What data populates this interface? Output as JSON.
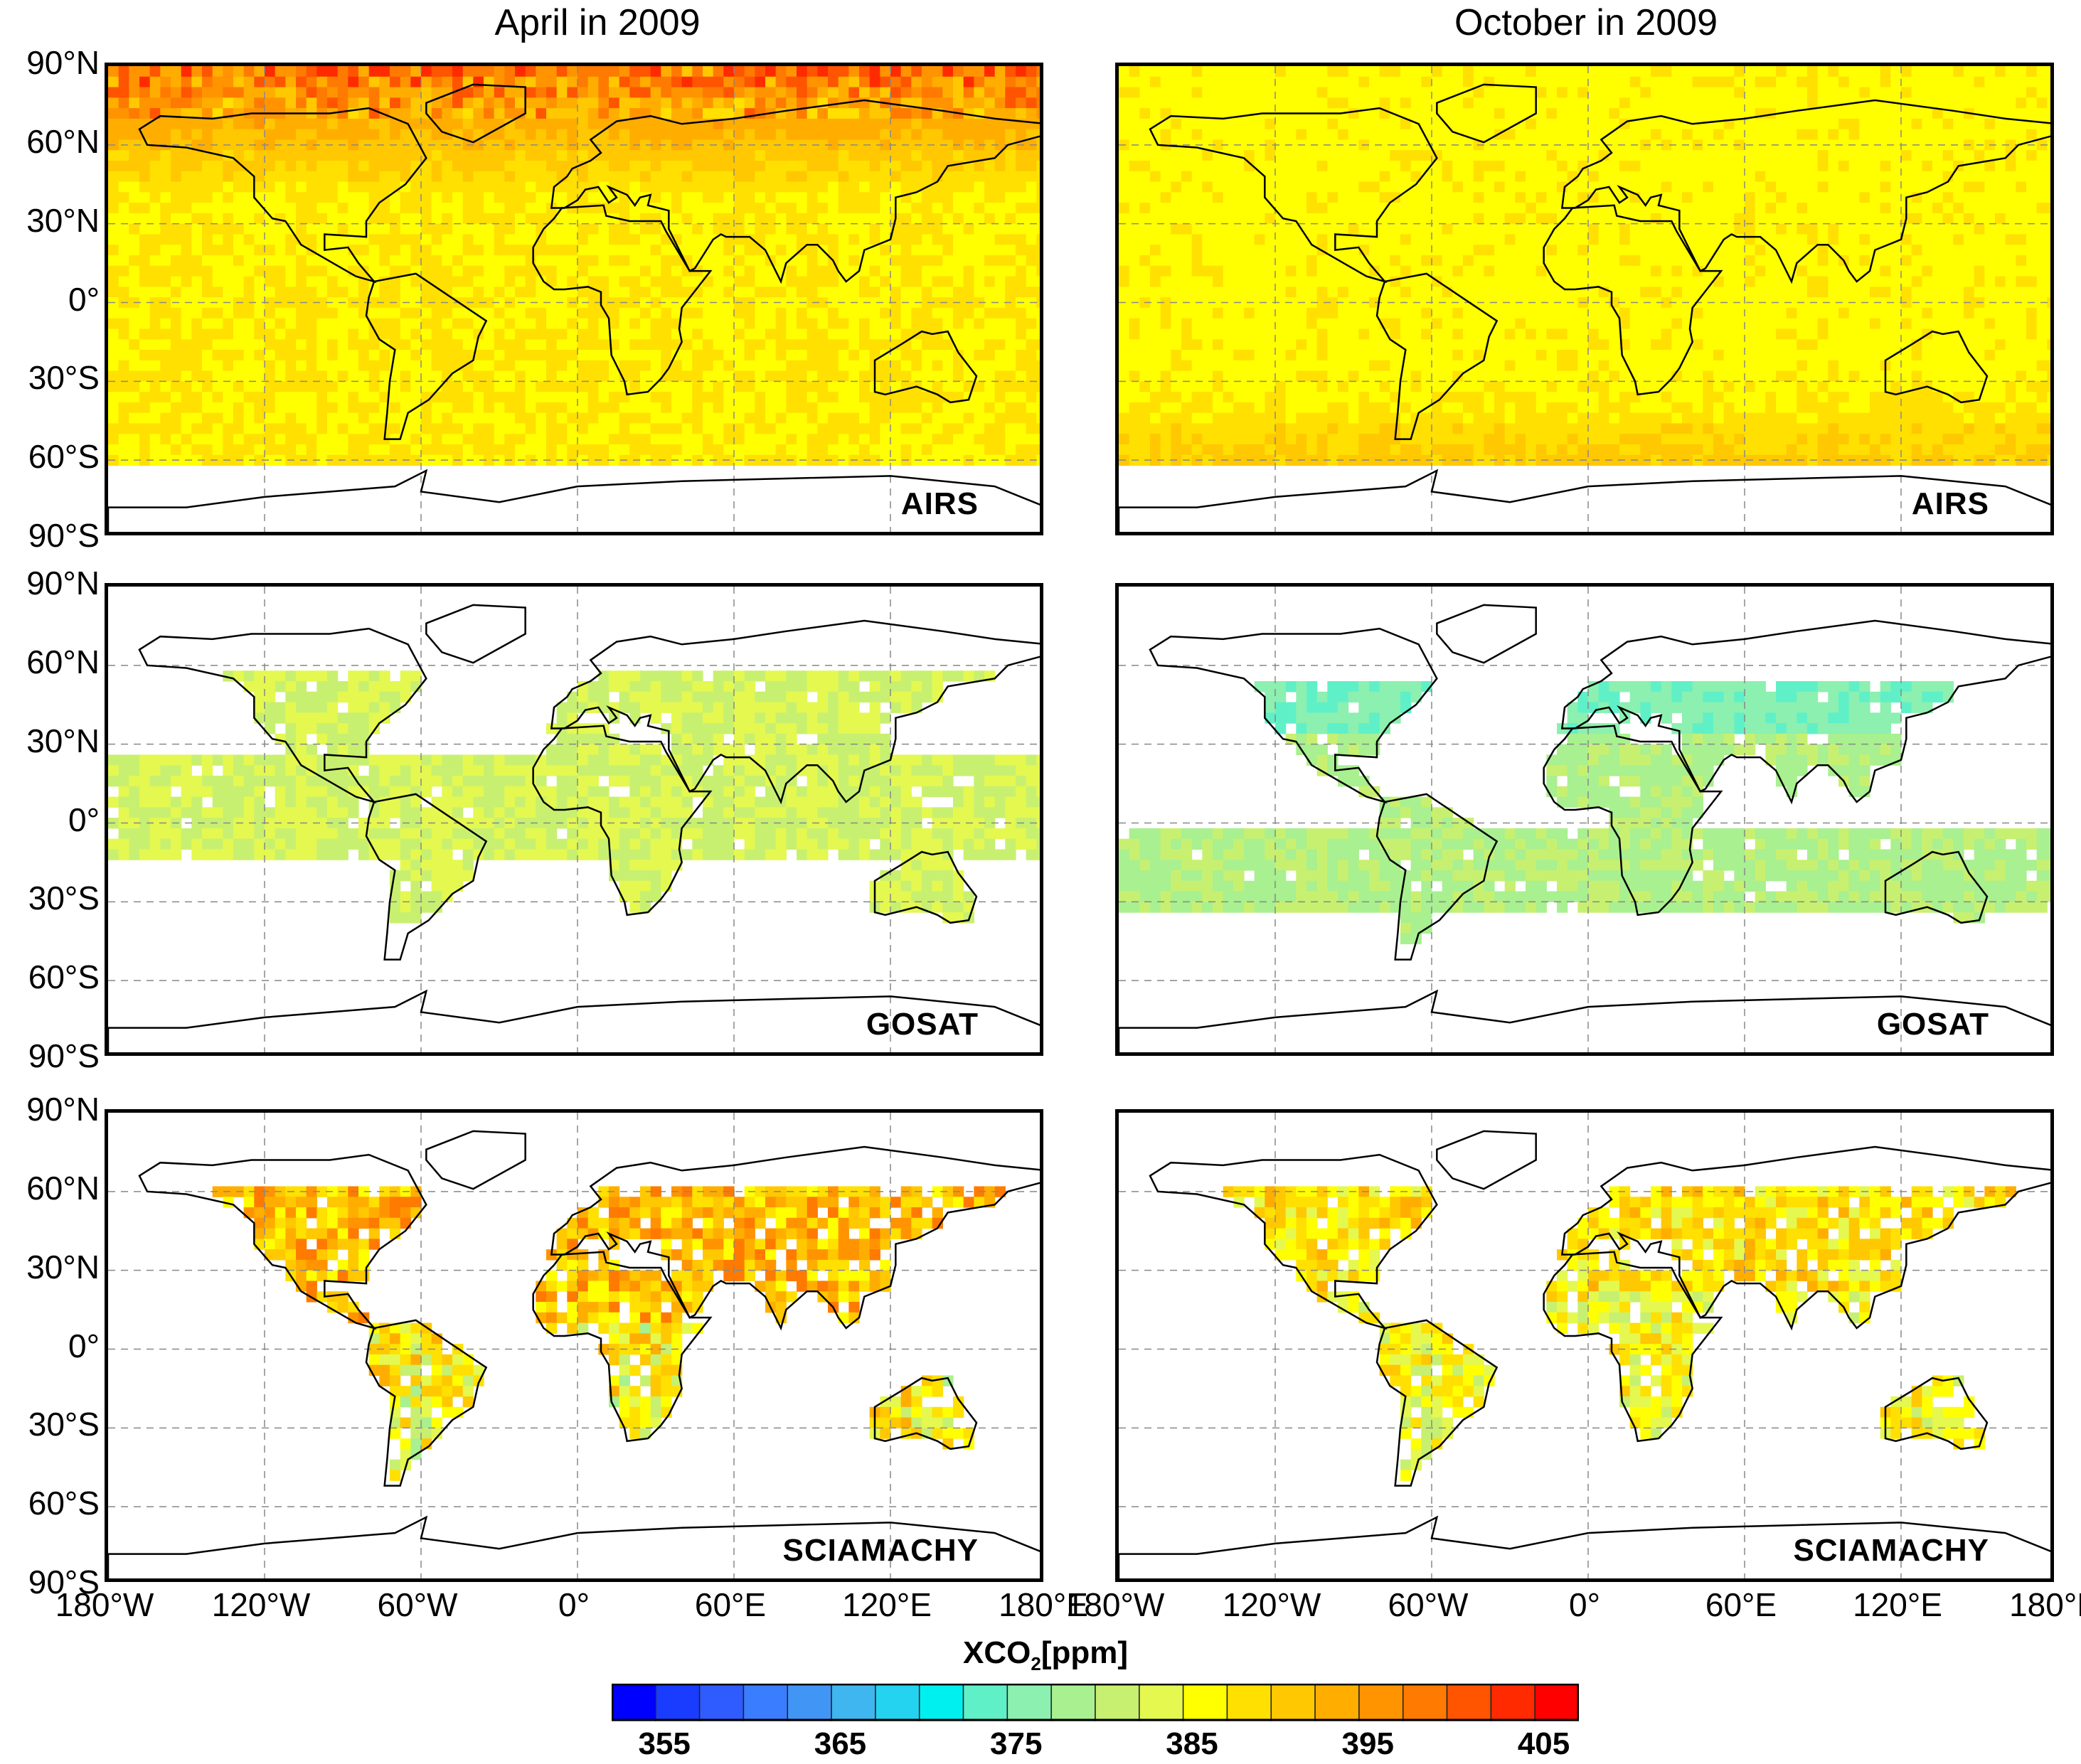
{
  "chart_data": {
    "type": "heatmap",
    "columns": [
      "April in 2009",
      "October in 2009"
    ],
    "rows": [
      "AIRS",
      "GOSAT",
      "SCIAMACHY"
    ],
    "lat_ticks": [
      "90°N",
      "60°N",
      "30°N",
      "0°",
      "30°S",
      "60°S",
      "90°S"
    ],
    "lon_ticks": [
      "180°W",
      "120°W",
      "60°W",
      "0°",
      "60°E",
      "120°E",
      "180°E"
    ],
    "lon_ticks_right_start": "180°W",
    "lat_range": [
      -90,
      90
    ],
    "lon_range": [
      -180,
      180
    ],
    "colorbar": {
      "title": "XCO",
      "title_sub": "2",
      "title_unit": "[ppm]",
      "range": [
        352,
        407
      ],
      "tick_labels": [
        "355",
        "365",
        "375",
        "385",
        "395",
        "405"
      ],
      "tick_values": [
        355,
        365,
        375,
        385,
        395,
        405
      ],
      "colors": [
        "#0000ff",
        "#1a3cff",
        "#2f5cff",
        "#3b7dff",
        "#4196f5",
        "#3fb6ef",
        "#23d3ef",
        "#00f0f0",
        "#60f0c8",
        "#8cf0b0",
        "#a8f090",
        "#c8f070",
        "#e4f850",
        "#ffff00",
        "#ffe000",
        "#ffc800",
        "#ffae00",
        "#ff9400",
        "#ff7a00",
        "#ff5400",
        "#ff2a00",
        "#ff0000"
      ]
    },
    "panels": [
      {
        "row": "AIRS",
        "column": "April in 2009",
        "coverage": "global ocean and land 60°S–90°N",
        "typical_xco2": 387,
        "range_xco2": [
          380,
          405
        ]
      },
      {
        "row": "AIRS",
        "column": "October in 2009",
        "coverage": "global ocean and land 60°S–90°N",
        "typical_xco2": 387,
        "range_xco2": [
          378,
          395
        ]
      },
      {
        "row": "GOSAT",
        "column": "April in 2009",
        "coverage": "land and tropical ocean glint",
        "typical_xco2": 382,
        "range_xco2": [
          377,
          386
        ]
      },
      {
        "row": "GOSAT",
        "column": "October in 2009",
        "coverage": "land and tropical ocean glint",
        "typical_xco2": 379,
        "range_xco2": [
          372,
          384
        ]
      },
      {
        "row": "SCIAMACHY",
        "column": "April in 2009",
        "coverage": "land only",
        "typical_xco2": 389,
        "range_xco2": [
          378,
          405
        ]
      },
      {
        "row": "SCIAMACHY",
        "column": "October in 2009",
        "coverage": "land only",
        "typical_xco2": 386,
        "range_xco2": [
          378,
          400
        ]
      }
    ]
  }
}
